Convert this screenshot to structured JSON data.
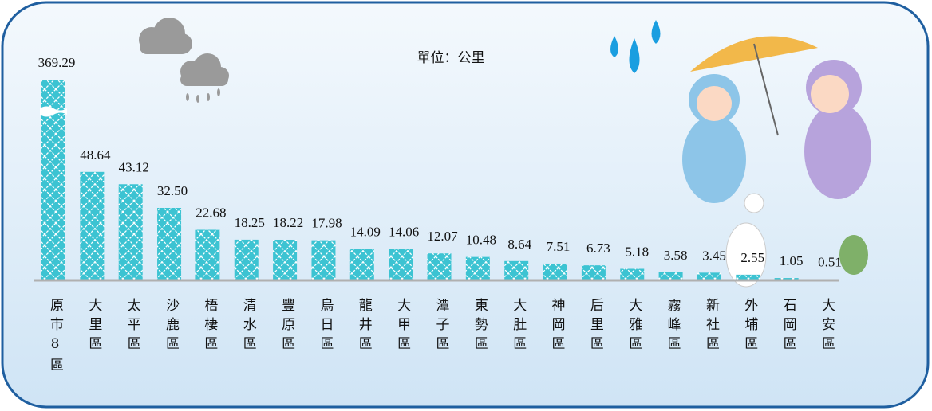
{
  "chart_data": {
    "type": "bar",
    "title": "單位：公里",
    "categories": [
      "原市8區",
      "大里區",
      "太平區",
      "沙鹿區",
      "梧棲區",
      "清水區",
      "豐原區",
      "烏日區",
      "龍井區",
      "大甲區",
      "潭子區",
      "東勢區",
      "大肚區",
      "神岡區",
      "后里區",
      "大雅區",
      "霧峰區",
      "新社區",
      "外埔區",
      "石岡區",
      "大安區"
    ],
    "values": [
      369.29,
      48.64,
      43.12,
      32.5,
      22.68,
      18.25,
      18.22,
      17.98,
      14.09,
      14.06,
      12.07,
      10.48,
      8.64,
      7.51,
      6.73,
      5.18,
      3.58,
      3.45,
      2.55,
      1.05,
      0.51
    ],
    "value_labels": [
      "369.29",
      "48.64",
      "43.12",
      "32.50",
      "22.68",
      "18.25",
      "18.22",
      "17.98",
      "14.09",
      "14.06",
      "12.07",
      "10.48",
      "8.64",
      "7.51",
      "6.73",
      "5.18",
      "3.58",
      "3.45",
      "2.55",
      "1.05",
      "0.51"
    ],
    "color": "#3cc3d2"
  }
}
